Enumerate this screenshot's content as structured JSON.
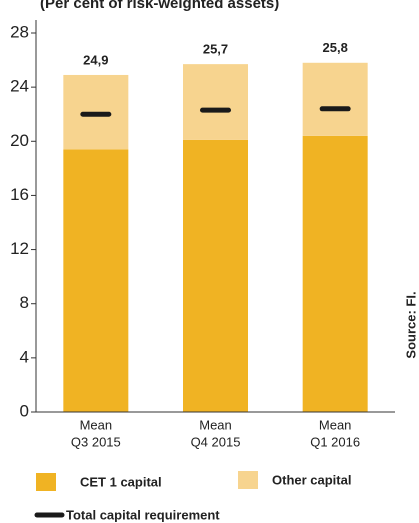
{
  "chart_data": {
    "type": "stacked_bar",
    "title": "(Per cent of risk-weighted assets)",
    "source": "Source: FI.",
    "categories": [
      [
        "Mean",
        "Q3 2015"
      ],
      [
        "Mean",
        "Q4 2015"
      ],
      [
        "Mean",
        "Q1 2016"
      ]
    ],
    "series": [
      {
        "name": "CET 1 capital",
        "color": "#f0b323",
        "values": [
          19.4,
          20.1,
          20.4
        ]
      },
      {
        "name": "Other capital",
        "color": "#f7d48f",
        "values": [
          5.5,
          5.6,
          5.4
        ]
      }
    ],
    "totals": {
      "values": [
        24.9,
        25.7,
        25.8
      ],
      "value_labels": [
        "24,9",
        "25,7",
        "25,8"
      ]
    },
    "markers": {
      "name": "Total capital requirement",
      "color": "#1a1a1a",
      "values": [
        22.0,
        22.3,
        22.4
      ]
    },
    "ylim": [
      0,
      28
    ],
    "yticks": [
      0,
      4,
      8,
      12,
      16,
      20,
      24,
      28
    ],
    "grid": false
  }
}
